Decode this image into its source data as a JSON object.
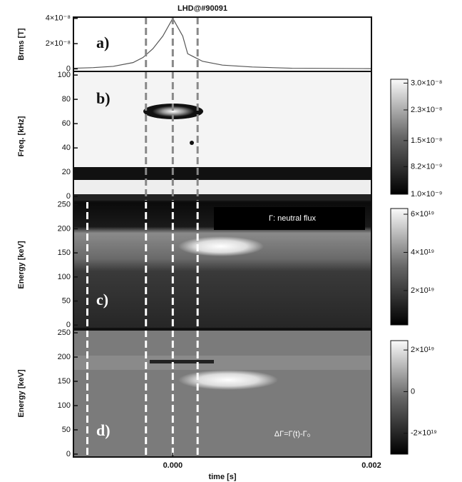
{
  "chart_data": [
    {
      "type": "line",
      "title": "LHD@#90091",
      "panel_label": "a)",
      "ylabel": "Brms [T]",
      "x": [
        -0.001,
        -0.0008,
        -0.0006,
        -0.0004,
        -0.0003,
        -0.0002,
        -0.0001,
        0,
        0.0001,
        0.00015,
        0.0002,
        0.0003,
        0.0005,
        0.0008,
        0.0012,
        0.002
      ],
      "values": [
        5e-10,
        1e-09,
        2e-09,
        5e-09,
        9e-09,
        1.6e-08,
        2.6e-08,
        4e-08,
        2.6e-08,
        1.2e-08,
        1e-08,
        6e-09,
        3e-09,
        1.5e-09,
        5e-10,
        2e-10
      ],
      "color": "#555555",
      "xlim": [
        -0.001,
        0.002
      ],
      "ylim": [
        -2e-09,
        4.1e-08
      ],
      "yticks": [
        0,
        {
          "value": 2e-08,
          "label": "2×10⁻⁸"
        },
        {
          "value": 4e-08,
          "label": "4×10⁻⁸"
        }
      ],
      "markers": [
        -0.00027,
        0,
        0.00025
      ],
      "marker_color": "#888888"
    },
    {
      "type": "contour",
      "panel_label": "b)",
      "ylabel": "Freq. [kHz]",
      "xlim": [
        -0.001,
        0.002
      ],
      "ylim": [
        -4,
        103
      ],
      "yticks": [
        0,
        20,
        40,
        60,
        80,
        100
      ],
      "markers": [
        -0.00027,
        0,
        0.00025
      ],
      "marker_color": "#888888",
      "colorbar": {
        "clim": [
          1e-09,
          3.1e-08
        ],
        "ticks": [
          {
            "value": 1e-09,
            "label": "1.0×10⁻⁹"
          },
          {
            "value": 8.2e-09,
            "label": "8.2×10⁻⁹"
          },
          {
            "value": 1.5e-08,
            "label": "1.5×10⁻⁸"
          },
          {
            "value": 2.3e-08,
            "label": "2.3×10⁻⁸"
          },
          {
            "value": 3e-08,
            "label": "3.0×10⁻⁸"
          }
        ]
      }
    },
    {
      "type": "contour",
      "panel_label": "c)",
      "ylabel": "Energy [keV]",
      "annotation": "Γ: neutral flux",
      "xlim": [
        -0.001,
        0.002
      ],
      "ylim": [
        -7,
        257
      ],
      "yticks": [
        0,
        50,
        100,
        150,
        200,
        250
      ],
      "markers": [
        -0.00086,
        -0.00027,
        0,
        0.00025
      ],
      "marker_color": "#ffffff",
      "colorbar": {
        "clim": [
          2e+18,
          6.3e+19
        ],
        "ticks": [
          {
            "value": 2e+19,
            "label": "2×10¹⁹"
          },
          {
            "value": 4e+19,
            "label": "4×10¹⁹"
          },
          {
            "value": 6e+19,
            "label": "6×10¹⁹"
          }
        ]
      }
    },
    {
      "type": "contour",
      "panel_label": "d)",
      "ylabel": "Energy [keV]",
      "annotation": "ΔΓ=Γ(t)-Γ₀",
      "xlim": [
        -0.001,
        0.002
      ],
      "ylim": [
        -6,
        256
      ],
      "yticks": [
        0,
        50,
        100,
        150,
        200,
        250
      ],
      "xticks": [
        {
          "value": 0,
          "label": "0.000"
        },
        {
          "value": 0.002,
          "label": "0.002"
        }
      ],
      "xlabel": "time [s]",
      "markers": [
        -0.00086,
        -0.00027,
        0,
        0.00025
      ],
      "marker_color": "#ffffff",
      "colorbar": {
        "clim": [
          -3e+19,
          2.45e+19
        ],
        "ticks": [
          {
            "value": -2e+19,
            "label": "-2×10¹⁹"
          },
          0,
          {
            "value": 2e+19,
            "label": "2×10¹⁹"
          }
        ]
      }
    }
  ]
}
